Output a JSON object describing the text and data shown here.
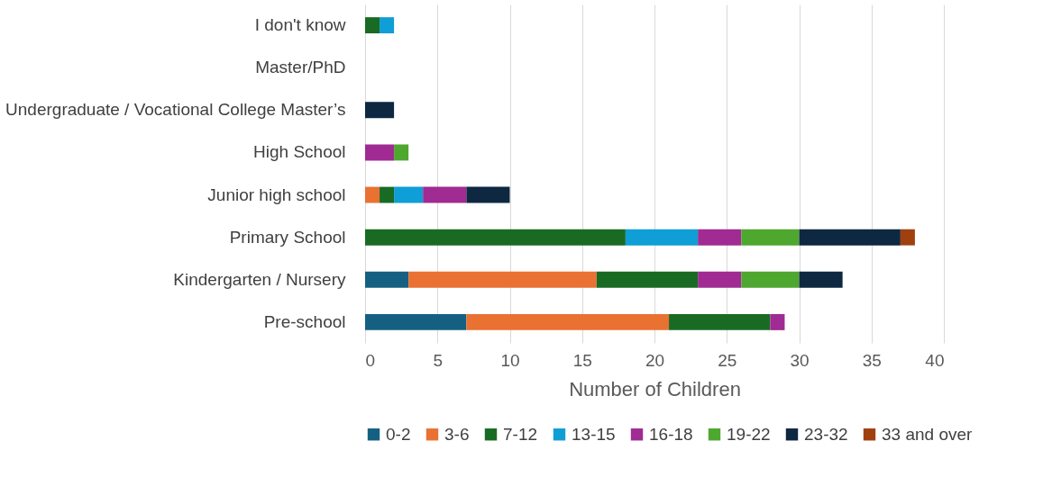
{
  "chart_data": {
    "type": "bar",
    "orientation": "horizontal",
    "stacked": true,
    "xlabel": "Number of Children",
    "categories": [
      "I don't know",
      "Master/PhD",
      "Undergraduate / Vocational College Master’s",
      "High School",
      "Junior high school",
      "Primary School",
      "Kindergarten / Nursery",
      "Pre-school"
    ],
    "series": [
      {
        "name": "0-2",
        "color": "#156082",
        "values": [
          null,
          null,
          null,
          null,
          null,
          null,
          3,
          7
        ]
      },
      {
        "name": "3-6",
        "color": "#e97132",
        "values": [
          null,
          null,
          null,
          null,
          1,
          null,
          13,
          14
        ]
      },
      {
        "name": "7-12",
        "color": "#196b24",
        "values": [
          1,
          null,
          null,
          null,
          1,
          18,
          7,
          7
        ]
      },
      {
        "name": "13-15",
        "color": "#0f9ed5",
        "values": [
          1,
          null,
          null,
          null,
          2,
          5,
          null,
          null
        ]
      },
      {
        "name": "16-18",
        "color": "#a02b93",
        "values": [
          null,
          null,
          null,
          2,
          3,
          3,
          3,
          1
        ]
      },
      {
        "name": "19-22",
        "color": "#4ea72e",
        "values": [
          null,
          null,
          null,
          1,
          null,
          4,
          4,
          null
        ]
      },
      {
        "name": "23-32",
        "color": "#0e2841",
        "values": [
          null,
          null,
          2,
          null,
          3,
          7,
          3,
          null
        ]
      },
      {
        "name": "33 and over",
        "color": "#a0400f",
        "values": [
          null,
          null,
          null,
          null,
          null,
          1,
          null,
          null
        ]
      }
    ],
    "xlim": [
      0,
      40
    ],
    "xticks": [
      0,
      5,
      10,
      15,
      20,
      25,
      30,
      35,
      40
    ],
    "grid": "x",
    "legend": "bottom"
  }
}
